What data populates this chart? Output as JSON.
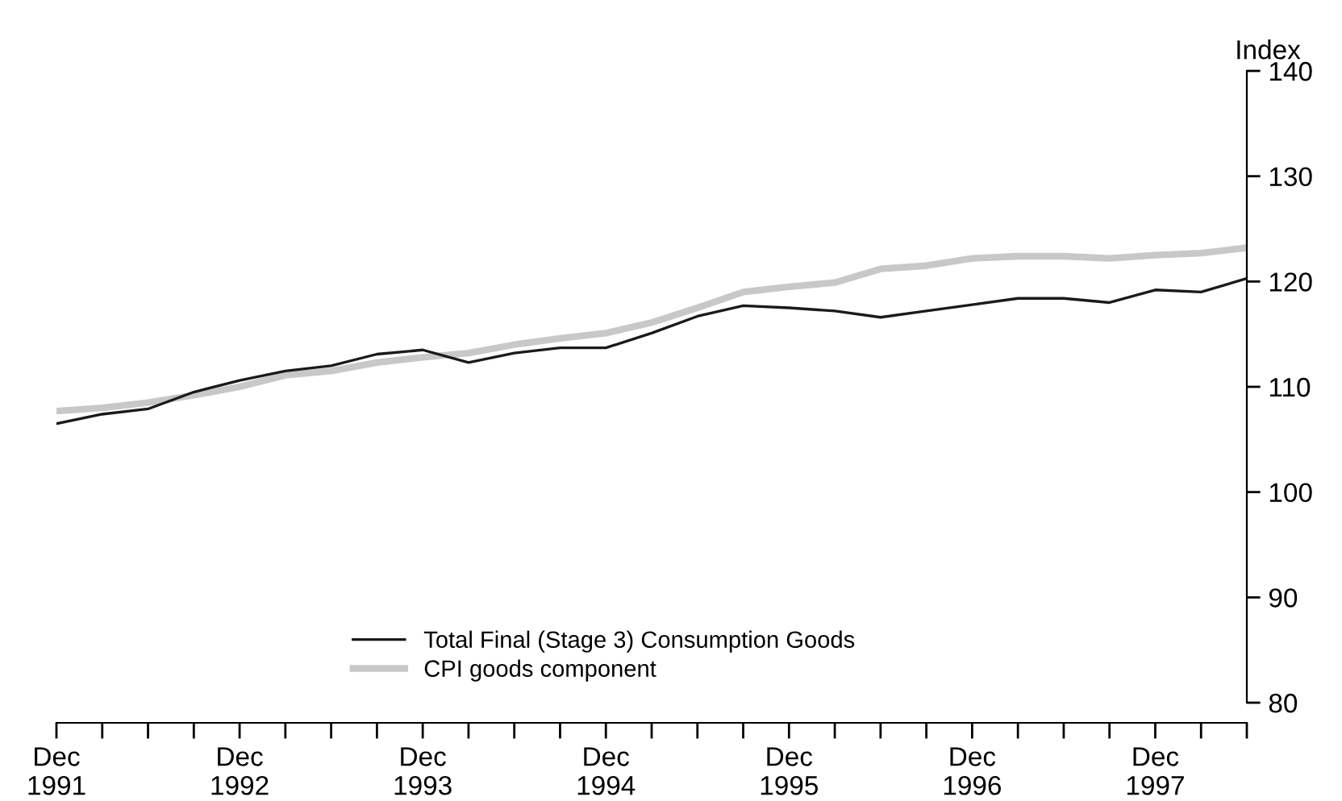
{
  "chart_data": {
    "type": "line",
    "ylabel": "Index",
    "categories": [
      "Dec\n1991",
      null,
      null,
      null,
      "Dec\n1992",
      null,
      null,
      null,
      "Dec\n1993",
      null,
      null,
      null,
      "Dec\n1994",
      null,
      null,
      null,
      "Dec\n1995",
      null,
      null,
      null,
      "Dec\n1996",
      null,
      null,
      null,
      "Dec\n1997",
      null,
      null
    ],
    "series": [
      {
        "name": "Total Final (Stage 3) Consumption Goods",
        "color": "#1a1a1a",
        "values": [
          106.5,
          107.4,
          107.9,
          109.5,
          110.6,
          111.5,
          112.0,
          113.1,
          113.5,
          112.3,
          113.2,
          113.7,
          113.7,
          115.1,
          116.7,
          117.7,
          117.5,
          117.2,
          116.6,
          117.2,
          117.8,
          118.4,
          118.4,
          118.0,
          119.2,
          119.0,
          120.3
        ]
      },
      {
        "name": "CPI goods component",
        "color": "#c8c8c8",
        "values": [
          107.7,
          108.0,
          108.5,
          109.2,
          110.0,
          111.1,
          111.5,
          112.3,
          112.8,
          113.2,
          114.0,
          114.6,
          115.1,
          116.1,
          117.5,
          119.0,
          119.5,
          119.9,
          121.2,
          121.5,
          122.2,
          122.4,
          122.4,
          122.2,
          122.5,
          122.7,
          123.2
        ]
      }
    ],
    "ylim": [
      80,
      140
    ],
    "yticks": [
      80,
      90,
      100,
      110,
      120,
      130,
      140
    ],
    "grid": false,
    "legend": "bottom",
    "marker": "none",
    "line_style": "solid"
  }
}
